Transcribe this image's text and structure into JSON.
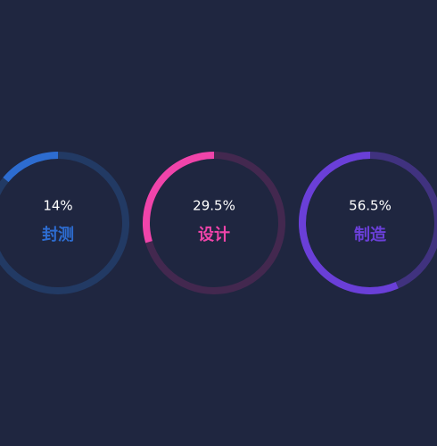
{
  "chart_data": {
    "type": "ring",
    "categories": [
      "封测",
      "设计",
      "制造"
    ],
    "values": [
      14,
      29.5,
      56.5
    ],
    "value_labels": [
      "14%",
      "29.5%",
      "56.5%"
    ],
    "colors": [
      "#2d6cd0",
      "#f044aa",
      "#6a3fd8"
    ],
    "track_colors": [
      "#223a64",
      "#43284f",
      "#40327f"
    ],
    "ylim": [
      0,
      100
    ]
  }
}
